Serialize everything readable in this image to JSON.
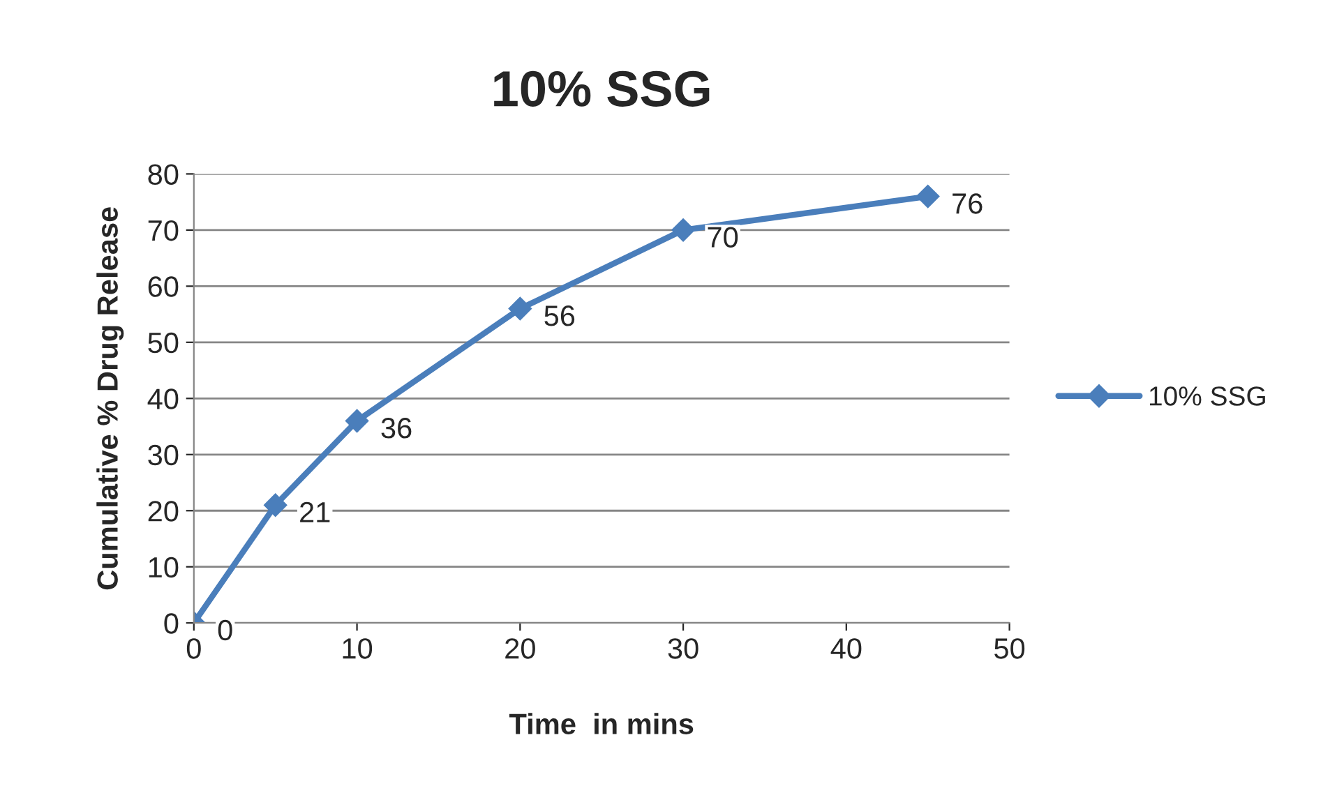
{
  "chart_data": {
    "type": "line",
    "title": "10% SSG",
    "xlabel": "Time  in mins",
    "ylabel": "Cumulative % Drug Release",
    "x": [
      0,
      5,
      10,
      20,
      30,
      45
    ],
    "series": [
      {
        "name": "10% SSG",
        "color": "#4a7ebb",
        "values": [
          0,
          21,
          36,
          56,
          70,
          76
        ]
      }
    ],
    "xlim": [
      0,
      50
    ],
    "xticks": [
      0,
      10,
      20,
      30,
      40,
      50
    ],
    "ylim": [
      0,
      80
    ],
    "yticks": [
      0,
      10,
      20,
      30,
      40,
      50,
      60,
      70,
      80
    ],
    "grid": "y",
    "legend": "right",
    "marker": "diamond",
    "line_style": "solid",
    "data_labels": true
  }
}
